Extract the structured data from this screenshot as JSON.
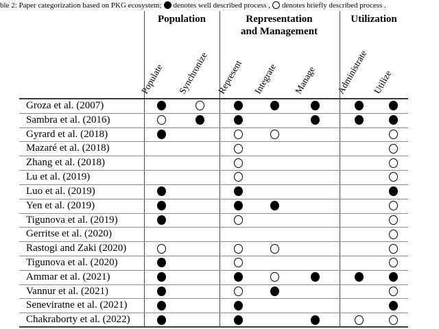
{
  "colors": {
    "background": "#ffffff",
    "text": "#000000",
    "rule_light": "#8c8c8c",
    "rule_dark": "#3b3b3b",
    "dot": "#000000"
  },
  "caption": {
    "part1": "ble 2: Paper categorization based on PKG ecosystem;",
    "part2": "denotes well described process ,",
    "part3": "denotes briefly described process ."
  },
  "table": {
    "groups": [
      {
        "lines": [
          "Population"
        ],
        "span": 2
      },
      {
        "lines": [
          "Representation",
          "and Management"
        ],
        "span": 3
      },
      {
        "lines": [
          "Utilization"
        ],
        "span": 2
      }
    ],
    "columns": [
      "Populate",
      "Synchronize",
      "Represent",
      "Integrate",
      "Manage",
      "Administrate",
      "Utilize"
    ],
    "legend": {
      "filled": "well described process",
      "empty": "briefly described process"
    },
    "rows": [
      {
        "label": "Groza et al. (2007)",
        "cells": [
          "filled",
          "empty",
          "filled",
          "filled",
          "filled",
          "filled",
          "filled"
        ]
      },
      {
        "label": "Sambra et al. (2016)",
        "cells": [
          "empty",
          "filled",
          "filled",
          "",
          "filled",
          "filled",
          "filled"
        ]
      },
      {
        "label": "Gyrard et al. (2018)",
        "cells": [
          "filled",
          "",
          "empty",
          "empty",
          "",
          "",
          "empty"
        ]
      },
      {
        "label": "Mazaré et al. (2018)",
        "cells": [
          "",
          "",
          "empty",
          "",
          "",
          "",
          "empty"
        ]
      },
      {
        "label": "Zhang et al. (2018)",
        "cells": [
          "",
          "",
          "empty",
          "",
          "",
          "",
          "empty"
        ]
      },
      {
        "label": "Lu et al. (2019)",
        "cells": [
          "",
          "",
          "empty",
          "",
          "",
          "",
          "empty"
        ]
      },
      {
        "label": "Luo et al. (2019)",
        "cells": [
          "filled",
          "",
          "filled",
          "",
          "",
          "",
          "filled"
        ]
      },
      {
        "label": "Yen et al. (2019)",
        "cells": [
          "filled",
          "",
          "filled",
          "filled",
          "",
          "",
          "empty"
        ]
      },
      {
        "label": "Tigunova et al. (2019)",
        "cells": [
          "filled",
          "",
          "empty",
          "",
          "",
          "",
          "empty"
        ]
      },
      {
        "label": "Gerritse et al. (2020)",
        "cells": [
          "",
          "",
          "",
          "",
          "",
          "",
          "empty"
        ]
      },
      {
        "label": "Rastogi and Zaki (2020)",
        "cells": [
          "empty",
          "",
          "empty",
          "empty",
          "",
          "",
          "empty"
        ]
      },
      {
        "label": "Tigunova et al. (2020)",
        "cells": [
          "filled",
          "",
          "empty",
          "",
          "",
          "",
          "empty"
        ]
      },
      {
        "label": "Ammar et al. (2021)",
        "cells": [
          "filled",
          "",
          "filled",
          "empty",
          "filled",
          "filled",
          "filled"
        ]
      },
      {
        "label": "Vannur et al. (2021)",
        "cells": [
          "filled",
          "",
          "empty",
          "filled",
          "",
          "",
          "empty"
        ]
      },
      {
        "label": "Seneviratne et al. (2021)",
        "cells": [
          "filled",
          "",
          "filled",
          "",
          "",
          "",
          "filled"
        ]
      },
      {
        "label": "Chakraborty et al. (2022)",
        "cells": [
          "filled",
          "",
          "filled",
          "",
          "filled",
          "empty",
          "empty"
        ]
      }
    ]
  }
}
